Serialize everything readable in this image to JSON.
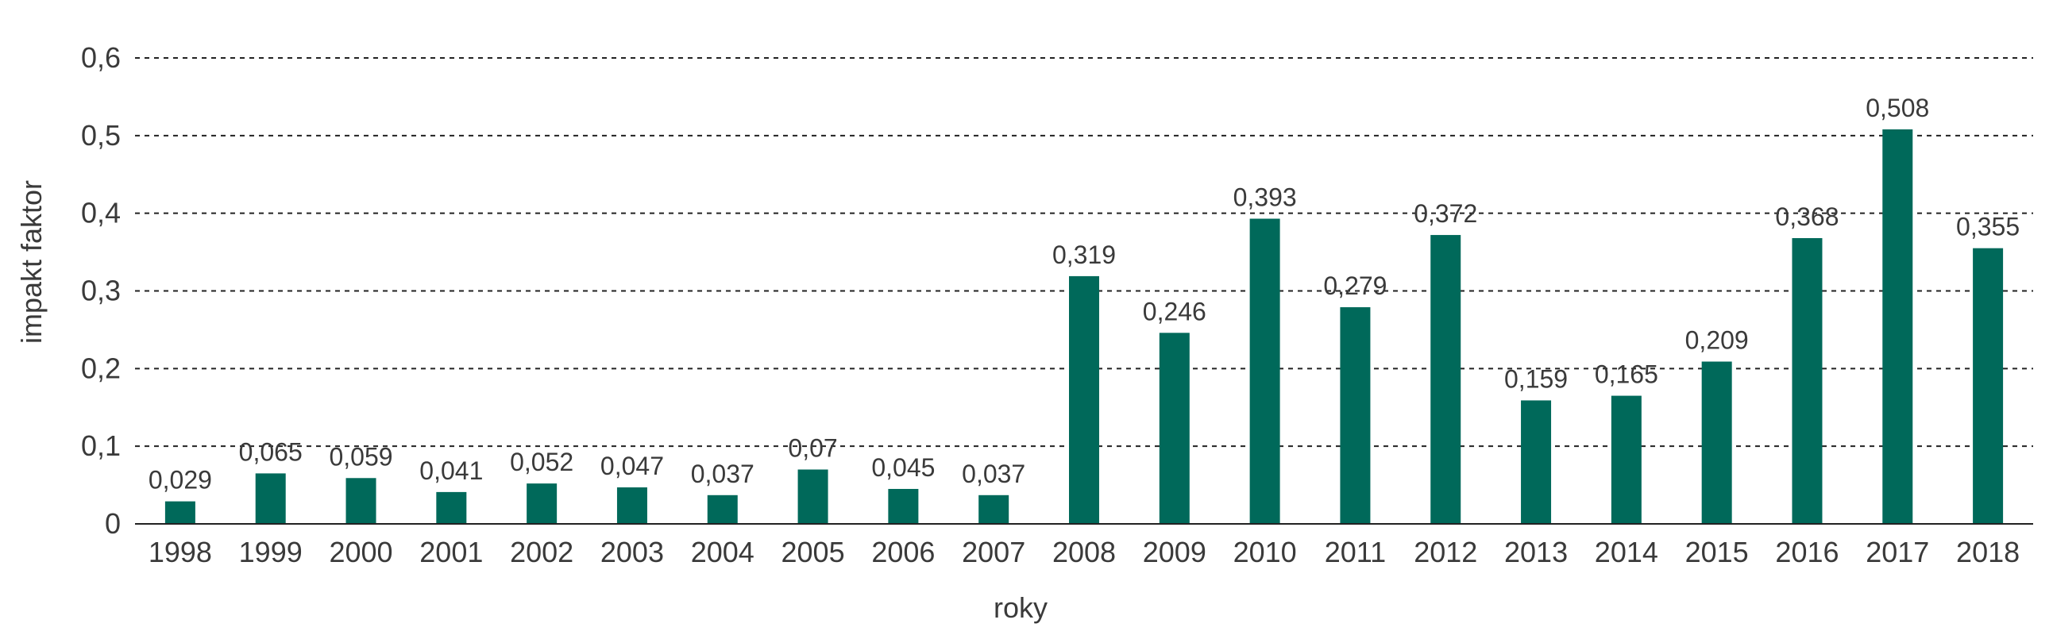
{
  "chart_data": {
    "type": "bar",
    "categories": [
      "1998",
      "1999",
      "2000",
      "2001",
      "2002",
      "2003",
      "2004",
      "2005",
      "2006",
      "2007",
      "2008",
      "2009",
      "2010",
      "2011",
      "2012",
      "2013",
      "2014",
      "2015",
      "2016",
      "2017",
      "2018"
    ],
    "values": [
      0.029,
      0.065,
      0.059,
      0.041,
      0.052,
      0.047,
      0.037,
      0.07,
      0.045,
      0.037,
      0.319,
      0.246,
      0.393,
      0.279,
      0.372,
      0.159,
      0.165,
      0.209,
      0.368,
      0.508,
      0.355
    ],
    "value_labels": [
      "0,029",
      "0,065",
      "0,059",
      "0,041",
      "0,052",
      "0,047",
      "0,037",
      "0,07",
      "0,045",
      "0,037",
      "0,319",
      "0,246",
      "0,393",
      "0,279",
      "0,372",
      "0,159",
      "0,165",
      "0,209",
      "0,368",
      "0,508",
      "0,355"
    ],
    "xlabel": "roky",
    "ylabel": "impakt faktor",
    "ylim": [
      0,
      0.6
    ],
    "yticks": [
      0,
      0.1,
      0.2,
      0.3,
      0.4,
      0.5,
      0.6
    ],
    "ytick_labels": [
      "0",
      "0,1",
      "0,2",
      "0,3",
      "0,4",
      "0,5",
      "0,6"
    ],
    "grid": true,
    "bar_color": "#00695a"
  }
}
